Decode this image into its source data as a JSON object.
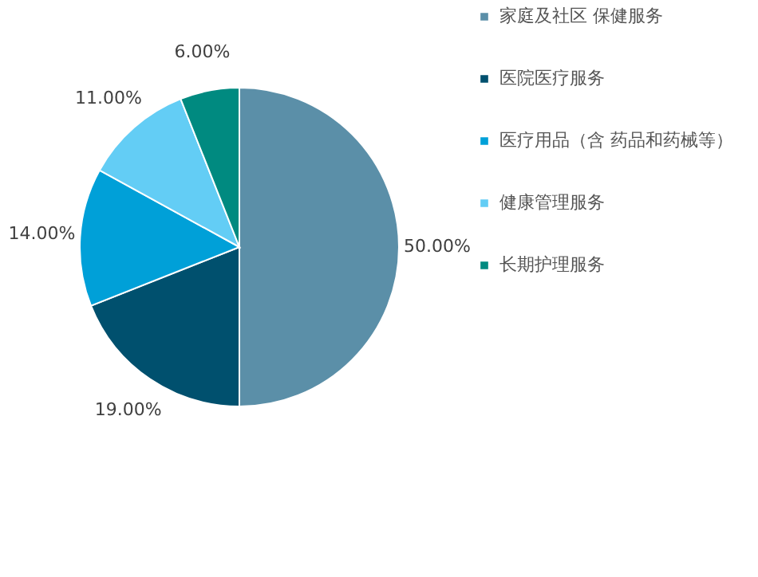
{
  "chart_data": {
    "type": "pie",
    "categories": [
      "家庭及社区 保健服务",
      "医院医疗服务",
      "医疗用品（含 药品和药械等）",
      "健康管理服务",
      "长期护理服务"
    ],
    "values": [
      50,
      19,
      14,
      11,
      6
    ],
    "colors": [
      "#5b8fa8",
      "#00506e",
      "#00a0d8",
      "#63cdf5",
      "#008a80"
    ],
    "value_labels": [
      "50.00%",
      "19.00%",
      "14.00%",
      "11.00%",
      "6.00%"
    ],
    "legend": "right"
  }
}
